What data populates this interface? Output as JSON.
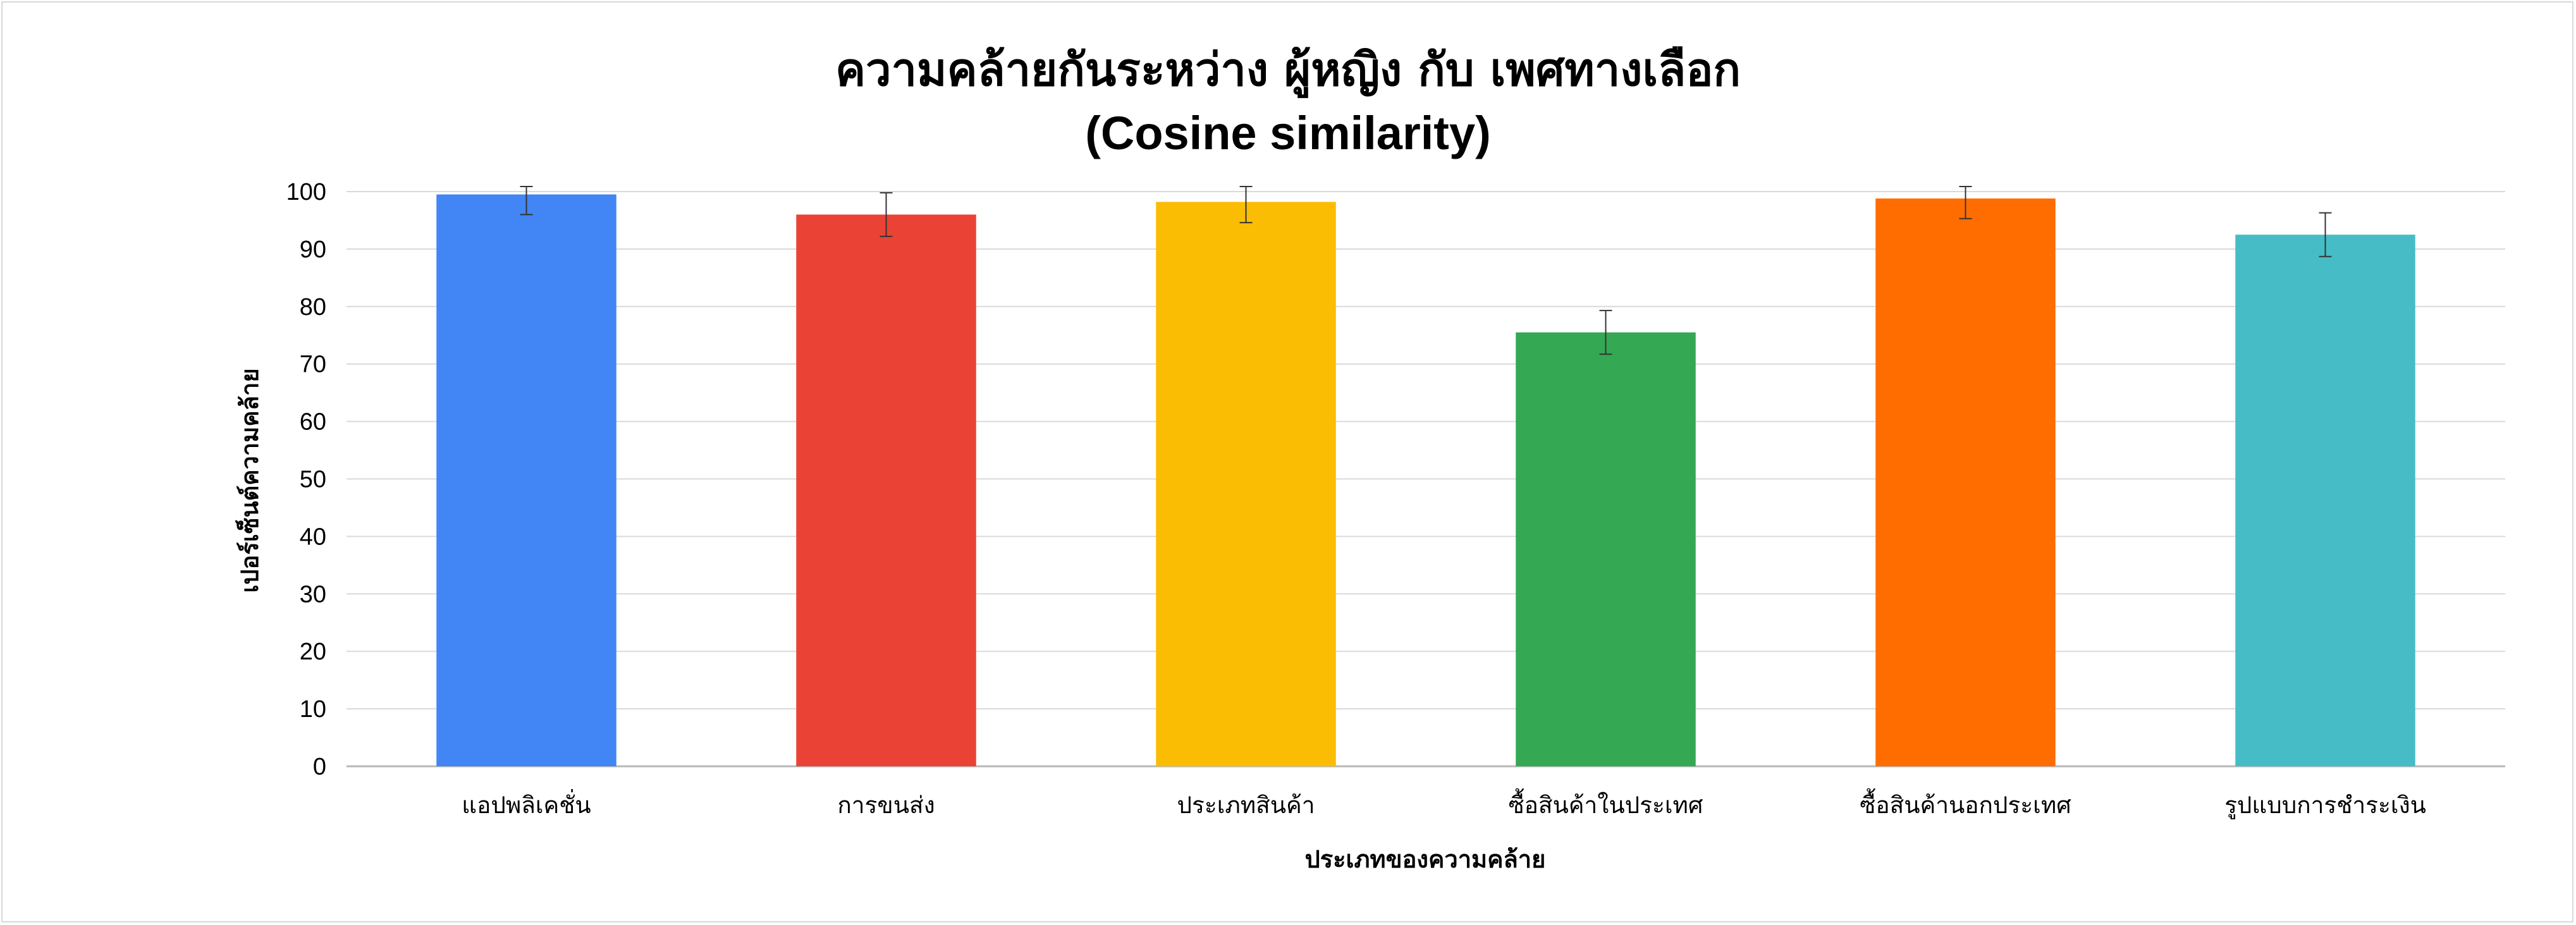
{
  "chart_data": {
    "type": "bar",
    "title": "ความคล้ายกันระหว่าง ผู้หญิง กับ เพศทางเลือก",
    "subtitle": "(Cosine similarity)",
    "xlabel": "ประเภทของความคล้าย",
    "ylabel": "เปอร์เซ็นต์ความคล้าย",
    "ylim": [
      0,
      100
    ],
    "yticks": [
      0,
      10,
      20,
      30,
      40,
      50,
      60,
      70,
      80,
      90,
      100
    ],
    "grid": true,
    "categories": [
      "แอปพลิเคชั่น",
      "การขนส่ง",
      "ประเภทสินค้า",
      "ซื้อสินค้าในประเทศ",
      "ซื้อสินค้านอกประเทศ",
      "รูปแบบการชำระเงิน"
    ],
    "values": [
      99.5,
      96,
      98.2,
      75.5,
      98.8,
      92.5
    ],
    "error": [
      3.5,
      3.8,
      3.6,
      3.8,
      3.5,
      3.8
    ],
    "colors": [
      "#4285f4",
      "#ea4335",
      "#fbbc04",
      "#34a853",
      "#ff6d01",
      "#46bdc6"
    ]
  }
}
